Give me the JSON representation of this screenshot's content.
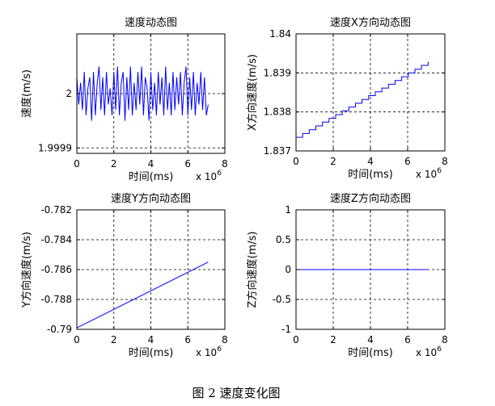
{
  "figure_caption": "图 2  速度变化图",
  "chart_data": [
    {
      "type": "line",
      "title": "速度动态图",
      "xlabel": "时间(ms)",
      "ylabel": "速度(m/s)",
      "x_exponent_label": "x 10",
      "x_exponent": "6",
      "xlim": [
        0,
        8
      ],
      "ylim": [
        1.99989,
        2.00011
      ],
      "xticks": [
        0,
        2,
        4,
        6,
        8
      ],
      "xtick_labels": [
        "0",
        "2",
        "4",
        "6",
        "8"
      ],
      "yticks": [
        1.9999,
        2
      ],
      "ytick_labels": [
        "1.9999",
        "2"
      ],
      "grid": true,
      "color": "#0000ff",
      "series": [
        {
          "x": [
            0,
            0.1,
            0.2,
            0.3,
            0.4,
            0.5,
            0.6,
            0.7,
            0.8,
            0.9,
            1.0,
            1.1,
            1.2,
            1.3,
            1.4,
            1.5,
            1.6,
            1.7,
            1.8,
            1.9,
            2.0,
            2.1,
            2.2,
            2.3,
            2.4,
            2.5,
            2.6,
            2.7,
            2.8,
            2.9,
            3.0,
            3.1,
            3.2,
            3.3,
            3.4,
            3.5,
            3.6,
            3.7,
            3.8,
            3.9,
            4.0,
            4.1,
            4.2,
            4.3,
            4.4,
            4.5,
            4.6,
            4.7,
            4.8,
            4.9,
            5.0,
            5.1,
            5.2,
            5.3,
            5.4,
            5.5,
            5.6,
            5.7,
            5.8,
            5.9,
            6.0,
            6.1,
            6.2,
            6.3,
            6.4,
            6.5,
            6.6,
            6.7,
            6.8,
            6.9,
            7.0,
            7.1
          ],
          "y": [
            2.00003,
            1.99998,
            2.00002,
            1.99997,
            2.00004,
            1.99996,
            2.00001,
            2.00003,
            1.99995,
            2.00004,
            1.99996,
            2.00002,
            2.00005,
            1.99997,
            2.00003,
            1.99996,
            2.00004,
            1.99998,
            2.00001,
            1.99996,
            2.00004,
            1.99997,
            2.00005,
            1.99996,
            2.00002,
            2.00004,
            1.99995,
            2.00003,
            1.99997,
            2.00005,
            1.99996,
            2.00002,
            1.99997,
            2.00004,
            1.99998,
            2.00005,
            1.99996,
            2.00003,
            2.00001,
            1.99995,
            2.00004,
            1.99997,
            2.00002,
            1.99996,
            2.00004,
            1.99998,
            2.00003,
            1.99996,
            2.00005,
            1.99997,
            2.00002,
            1.99996,
            2.00004,
            1.99997,
            2.00003,
            1.99998,
            2.00004,
            1.99996,
            2.00002,
            2.00005,
            1.99996,
            2.00003,
            1.99997,
            2.00004,
            1.99996,
            2.00002,
            1.99998,
            2.00004,
            1.99997,
            2.00003,
            1.99996,
            1.99998
          ]
        }
      ]
    },
    {
      "type": "line",
      "title": "速度X方向动态图",
      "xlabel": "时间(ms)",
      "ylabel": "X方向速度(m/s)",
      "x_exponent_label": "x 10",
      "x_exponent": "6",
      "xlim": [
        0,
        8
      ],
      "ylim": [
        1.837,
        1.84
      ],
      "xticks": [
        0,
        2,
        4,
        6,
        8
      ],
      "xtick_labels": [
        "0",
        "2",
        "4",
        "6",
        "8"
      ],
      "yticks": [
        1.837,
        1.838,
        1.839,
        1.84
      ],
      "ytick_labels": [
        "1.837",
        "1.838",
        "1.839",
        "1.84"
      ],
      "grid": true,
      "color": "#0000ff",
      "series": [
        {
          "x": [
            0,
            7.1
          ],
          "y": [
            1.83735,
            1.83929
          ],
          "staircase_steps": 20
        }
      ]
    },
    {
      "type": "line",
      "title": "速度Y方向动态图",
      "xlabel": "时间(ms)",
      "ylabel": "Y方向速度(m/s)",
      "x_exponent_label": "x 10",
      "x_exponent": "6",
      "xlim": [
        0,
        8
      ],
      "ylim": [
        -0.79,
        -0.782
      ],
      "xticks": [
        0,
        2,
        4,
        6,
        8
      ],
      "xtick_labels": [
        "0",
        "2",
        "4",
        "6",
        "8"
      ],
      "yticks": [
        -0.79,
        -0.788,
        -0.786,
        -0.784,
        -0.782
      ],
      "ytick_labels": [
        "-0.79",
        "-0.788",
        "-0.786",
        "-0.784",
        "-0.782"
      ],
      "grid": true,
      "color": "#0000ff",
      "series": [
        {
          "x": [
            0,
            7.1
          ],
          "y": [
            -0.7899,
            -0.7855
          ]
        }
      ]
    },
    {
      "type": "line",
      "title": "速度Z方向动态图",
      "xlabel": "时间(ms)",
      "ylabel": "Z方向速度(m/s)",
      "x_exponent_label": "x 10",
      "x_exponent": "6",
      "xlim": [
        0,
        8
      ],
      "ylim": [
        -1,
        1
      ],
      "xticks": [
        0,
        2,
        4,
        6,
        8
      ],
      "xtick_labels": [
        "0",
        "2",
        "4",
        "6",
        "8"
      ],
      "yticks": [
        -1,
        -0.5,
        0,
        0.5,
        1
      ],
      "ytick_labels": [
        "-1",
        "-0.5",
        "0",
        "0.5",
        "1"
      ],
      "grid": true,
      "color": "#0000ff",
      "series": [
        {
          "x": [
            0,
            7.1
          ],
          "y": [
            0,
            0
          ]
        }
      ]
    }
  ]
}
